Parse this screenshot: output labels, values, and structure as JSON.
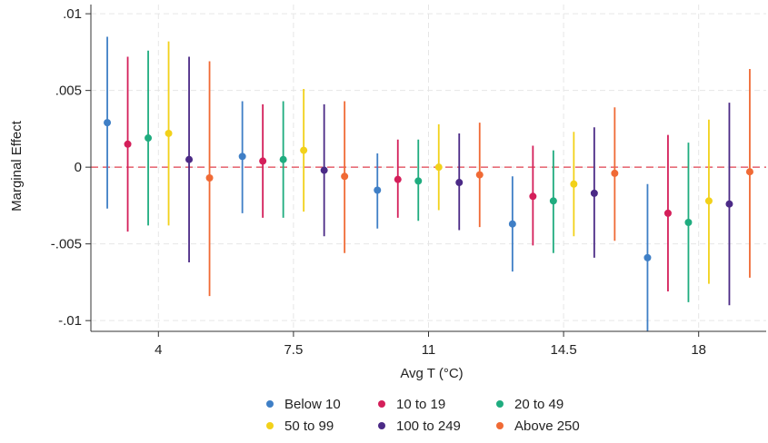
{
  "chart_data": {
    "type": "scatter",
    "title": "",
    "xlabel": "Avg T (°C)",
    "ylabel": "Marginal Effect",
    "x_ticks": [
      "4",
      "7.5",
      "11",
      "14.5",
      "18"
    ],
    "y_ticks": [
      ".01",
      ".005",
      "0",
      "-.005",
      "-.01"
    ],
    "y_tick_values": [
      0.01,
      0.005,
      0,
      -0.005,
      -0.01
    ],
    "ylim": [
      -0.0107,
      0.0106
    ],
    "grid": true,
    "reference_line": 0,
    "reference_line_color": "#e0414f",
    "legend_position": "bottom",
    "series": [
      {
        "name": "Below 10",
        "color": "#3f7fc6",
        "estimates": [
          0.0029,
          0.0007,
          -0.0015,
          -0.0037,
          -0.0059
        ],
        "ci_low": [
          -0.0027,
          -0.003,
          -0.004,
          -0.0068,
          -0.0107
        ],
        "ci_high": [
          0.0085,
          0.0043,
          0.0009,
          -0.0006,
          -0.0011
        ]
      },
      {
        "name": "10 to 19",
        "color": "#d41f5a",
        "estimates": [
          0.0015,
          0.0004,
          -0.0008,
          -0.0019,
          -0.003
        ],
        "ci_low": [
          -0.0042,
          -0.0033,
          -0.0033,
          -0.0051,
          -0.0081
        ],
        "ci_high": [
          0.0072,
          0.0041,
          0.0018,
          0.0014,
          0.0021
        ]
      },
      {
        "name": "20 to 49",
        "color": "#1fac7f",
        "estimates": [
          0.0019,
          0.0005,
          -0.0009,
          -0.0022,
          -0.0036
        ],
        "ci_low": [
          -0.0038,
          -0.0033,
          -0.0035,
          -0.0056,
          -0.0088
        ],
        "ci_high": [
          0.0076,
          0.0043,
          0.0018,
          0.0011,
          0.0016
        ]
      },
      {
        "name": "50 to 99",
        "color": "#f2d11a",
        "estimates": [
          0.0022,
          0.0011,
          0.0,
          -0.0011,
          -0.0022
        ],
        "ci_low": [
          -0.0038,
          -0.0029,
          -0.0028,
          -0.0045,
          -0.0076
        ],
        "ci_high": [
          0.0082,
          0.0051,
          0.0028,
          0.0023,
          0.0031
        ]
      },
      {
        "name": "100 to 249",
        "color": "#4b2a86",
        "estimates": [
          0.0005,
          -0.0002,
          -0.001,
          -0.0017,
          -0.0024
        ],
        "ci_low": [
          -0.0062,
          -0.0045,
          -0.0041,
          -0.0059,
          -0.009
        ],
        "ci_high": [
          0.0072,
          0.0041,
          0.0022,
          0.0026,
          0.0042
        ]
      },
      {
        "name": "Above 250",
        "color": "#f06a35",
        "estimates": [
          -0.0007,
          -0.0006,
          -0.0005,
          -0.0004,
          -0.0003
        ],
        "ci_low": [
          -0.0084,
          -0.0056,
          -0.0039,
          -0.0048,
          -0.0072
        ],
        "ci_high": [
          0.0069,
          0.0043,
          0.0029,
          0.0039,
          0.0064
        ]
      }
    ]
  }
}
